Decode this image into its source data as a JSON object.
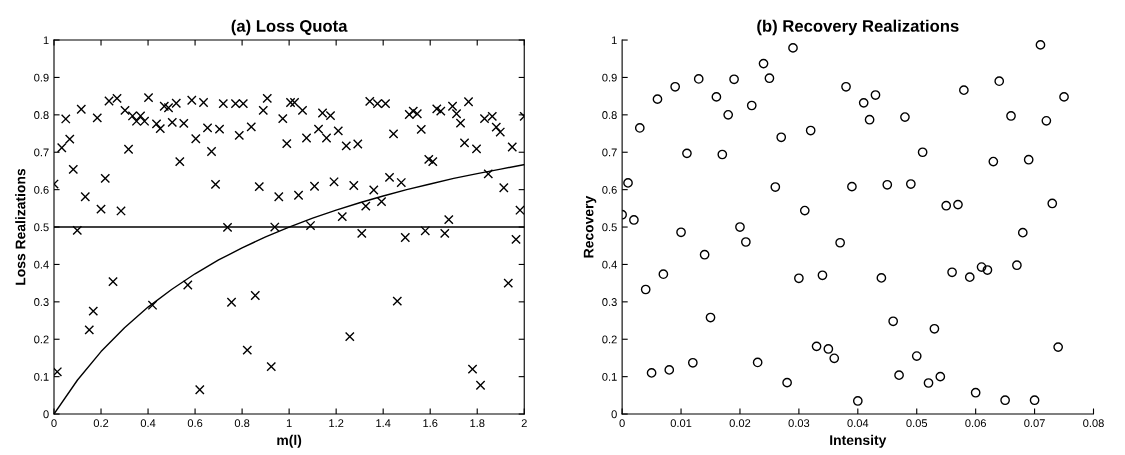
{
  "chart_data": [
    {
      "type": "scatter",
      "title": "(a) Loss Quota",
      "xlabel": "m(l)",
      "ylabel": "Loss Realizations",
      "grid": false,
      "legend": false,
      "xlim": [
        0,
        2
      ],
      "xticks": [
        0,
        0.2,
        0.4,
        0.6,
        0.8,
        1,
        1.2,
        1.4,
        1.6,
        1.8,
        2
      ],
      "ylim": [
        0,
        1
      ],
      "yticks": [
        0,
        0.1,
        0.2,
        0.3,
        0.4,
        0.5,
        0.6,
        0.7,
        0.8,
        0.9,
        1
      ],
      "ref_lines": [
        {
          "axis": "y",
          "value": 0.5,
          "color": "#000000"
        }
      ],
      "series": [
        {
          "marker": "cross",
          "color": "#000000",
          "x": [
            0,
            0.014,
            0.033,
            0.05,
            0.067,
            0.082,
            0.099,
            0.116,
            0.133,
            0.15,
            0.167,
            0.184,
            0.2,
            0.218,
            0.234,
            0.251,
            0.268,
            0.285,
            0.302,
            0.317,
            0.334,
            0.351,
            0.368,
            0.385,
            0.402,
            0.419,
            0.436,
            0.452,
            0.469,
            0.487,
            0.503,
            0.52,
            0.535,
            0.552,
            0.569,
            0.586,
            0.603,
            0.62,
            0.636,
            0.653,
            0.67,
            0.687,
            0.704,
            0.72,
            0.738,
            0.755,
            0.772,
            0.788,
            0.805,
            0.822,
            0.839,
            0.856,
            0.873,
            0.89,
            0.907,
            0.924,
            0.939,
            0.956,
            0.973,
            0.99,
            1.006,
            1.023,
            1.04,
            1.057,
            1.074,
            1.091,
            1.108,
            1.125,
            1.142,
            1.159,
            1.176,
            1.191,
            1.209,
            1.226,
            1.243,
            1.258,
            1.275,
            1.292,
            1.309,
            1.326,
            1.343,
            1.36,
            1.376,
            1.393,
            1.41,
            1.427,
            1.444,
            1.46,
            1.477,
            1.494,
            1.511,
            1.528,
            1.545,
            1.562,
            1.579,
            1.594,
            1.611,
            1.628,
            1.645,
            1.662,
            1.679,
            1.695,
            1.712,
            1.729,
            1.746,
            1.763,
            1.78,
            1.797,
            1.814,
            1.831,
            1.847,
            1.864,
            1.881,
            1.898,
            1.913,
            1.932,
            1.949,
            1.965,
            1.982,
            2.0
          ],
          "values": [
            0.615,
            0.113,
            0.712,
            0.789,
            0.735,
            0.654,
            0.491,
            0.815,
            0.581,
            0.225,
            0.275,
            0.792,
            0.548,
            0.63,
            0.837,
            0.354,
            0.844,
            0.543,
            0.812,
            0.708,
            0.797,
            0.783,
            0.797,
            0.783,
            0.846,
            0.291,
            0.776,
            0.763,
            0.823,
            0.819,
            0.78,
            0.831,
            0.675,
            0.777,
            0.345,
            0.839,
            0.736,
            0.065,
            0.833,
            0.765,
            0.702,
            0.614,
            0.762,
            0.83,
            0.499,
            0.299,
            0.83,
            0.745,
            0.83,
            0.171,
            0.768,
            0.317,
            0.608,
            0.812,
            0.844,
            0.127,
            0.5,
            0.581,
            0.79,
            0.723,
            0.833,
            0.833,
            0.585,
            0.812,
            0.738,
            0.504,
            0.609,
            0.762,
            0.805,
            0.738,
            0.798,
            0.621,
            0.757,
            0.528,
            0.717,
            0.207,
            0.611,
            0.722,
            0.483,
            0.556,
            0.836,
            0.599,
            0.83,
            0.568,
            0.83,
            0.633,
            0.749,
            0.302,
            0.619,
            0.472,
            0.801,
            0.81,
            0.803,
            0.761,
            0.49,
            0.681,
            0.675,
            0.816,
            0.81,
            0.483,
            0.52,
            0.823,
            0.803,
            0.778,
            0.725,
            0.835,
            0.12,
            0.709,
            0.077,
            0.79,
            0.642,
            0.796,
            0.767,
            0.754,
            0.605,
            0.35,
            0.714,
            0.467,
            0.545,
            0.796
          ]
        },
        {
          "type": "line",
          "marker": "none",
          "color": "#000000",
          "x": [
            0,
            0.1,
            0.2,
            0.3,
            0.4,
            0.5,
            0.6,
            0.7,
            0.8,
            0.9,
            1,
            1.1,
            1.2,
            1.3,
            1.4,
            1.5,
            1.6,
            1.7,
            1.8,
            1.9,
            2
          ],
          "values": [
            0,
            0.091,
            0.167,
            0.231,
            0.286,
            0.333,
            0.375,
            0.412,
            0.444,
            0.474,
            0.5,
            0.524,
            0.545,
            0.565,
            0.583,
            0.6,
            0.615,
            0.63,
            0.643,
            0.655,
            0.667
          ]
        }
      ]
    },
    {
      "type": "scatter",
      "title": "(b) Recovery Realizations",
      "xlabel": "Intensity",
      "ylabel": "Recovery",
      "marker": "circle",
      "grid": false,
      "legend": false,
      "xlim": [
        0,
        0.08
      ],
      "xticks": [
        0,
        0.01,
        0.02,
        0.03,
        0.04,
        0.05,
        0.06,
        0.07,
        0.08
      ],
      "ylim": [
        0,
        1
      ],
      "yticks": [
        0,
        0.1,
        0.2,
        0.3,
        0.4,
        0.5,
        0.6,
        0.7,
        0.8,
        0.9,
        1
      ],
      "series": [
        {
          "color": "#000000",
          "x": [
            0,
            0.001,
            0.002,
            0.003,
            0.004,
            0.005,
            0.006,
            0.007,
            0.008,
            0.009,
            0.01,
            0.011,
            0.012,
            0.013,
            0.014,
            0.015,
            0.016,
            0.017,
            0.018,
            0.019,
            0.02,
            0.021,
            0.022,
            0.023,
            0.024,
            0.025,
            0.026,
            0.027,
            0.028,
            0.029,
            0.03,
            0.031,
            0.032,
            0.033,
            0.034,
            0.035,
            0.036,
            0.037,
            0.038,
            0.039,
            0.04,
            0.041,
            0.042,
            0.043,
            0.044,
            0.045,
            0.046,
            0.047,
            0.048,
            0.049,
            0.05,
            0.051,
            0.052,
            0.053,
            0.054,
            0.055,
            0.056,
            0.057,
            0.058,
            0.059,
            0.06,
            0.061,
            0.062,
            0.063,
            0.064,
            0.065,
            0.066,
            0.067,
            0.068,
            0.069,
            0.07,
            0.071,
            0.072,
            0.073,
            0.074,
            0.075
          ],
          "values": [
            0.533,
            0.618,
            0.519,
            0.765,
            0.333,
            0.11,
            0.842,
            0.374,
            0.118,
            0.875,
            0.486,
            0.697,
            0.137,
            0.896,
            0.426,
            0.258,
            0.848,
            0.694,
            0.8,
            0.895,
            0.5,
            0.46,
            0.825,
            0.138,
            0.937,
            0.898,
            0.607,
            0.74,
            0.084,
            0.979,
            0.363,
            0.544,
            0.758,
            0.181,
            0.371,
            0.174,
            0.149,
            0.458,
            0.875,
            0.608,
            0.035,
            0.832,
            0.787,
            0.853,
            0.364,
            0.613,
            0.248,
            0.104,
            0.794,
            0.615,
            0.155,
            0.7,
            0.083,
            0.228,
            0.1,
            0.557,
            0.379,
            0.56,
            0.866,
            0.366,
            0.057,
            0.393,
            0.385,
            0.675,
            0.89,
            0.037,
            0.797,
            0.398,
            0.485,
            0.68,
            0.037,
            0.987,
            0.784,
            0.563,
            0.179,
            0.848
          ]
        }
      ]
    }
  ]
}
